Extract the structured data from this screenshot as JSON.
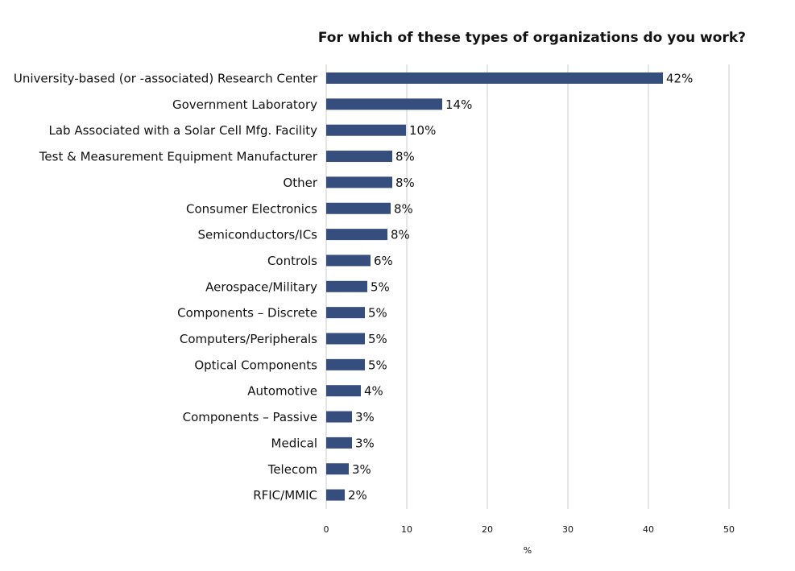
{
  "chart_data": {
    "type": "bar",
    "orientation": "horizontal",
    "title": "For which of these types of organizations do you work?",
    "xlabel": "%",
    "ylabel": "",
    "xlim": [
      0,
      50
    ],
    "xticks": [
      0,
      10,
      20,
      30,
      40,
      50
    ],
    "grid": "vertical",
    "bar_color": "#364e7e",
    "categories": [
      "University-based (or -associated) Research Center",
      "Government Laboratory",
      "Lab Associated with a Solar Cell Mfg. Facility",
      "Test & Measurement Equipment Manufacturer",
      "Other",
      "Consumer Electronics",
      "Semiconductors/ICs",
      "Controls",
      "Aerospace/Military",
      "Components – Discrete",
      "Computers/Peripherals",
      "Optical Components",
      "Automotive",
      "Components – Passive",
      "Medical",
      "Telecom",
      "RFIC/MMIC"
    ],
    "values": [
      41.8,
      14.4,
      9.9,
      8.2,
      8.2,
      8.0,
      7.6,
      5.5,
      5.1,
      4.8,
      4.8,
      4.8,
      4.3,
      3.2,
      3.2,
      2.8,
      2.3
    ],
    "data_labels": [
      "42%",
      "14%",
      "10%",
      "8%",
      "8%",
      "8%",
      "8%",
      "6%",
      "5%",
      "5%",
      "5%",
      "5%",
      "4%",
      "3%",
      "3%",
      "3%",
      "2%"
    ]
  }
}
